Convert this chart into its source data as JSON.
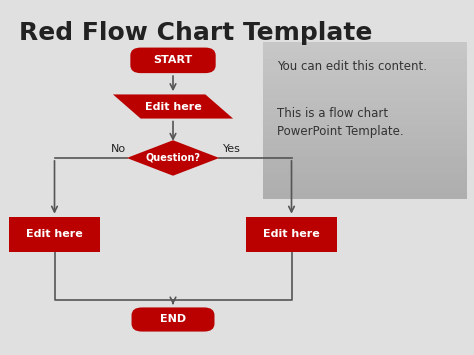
{
  "title": "Red Flow Chart Template",
  "title_fontsize": 18,
  "title_color": "#222222",
  "bg_color": "#e0e0e0",
  "shape_color": "#bb0000",
  "shape_text_color": "#ffffff",
  "shape_text_fontsize": 8,
  "arrow_color": "#555555",
  "sidebar_bg_top": "#d0d4da",
  "sidebar_bg_bot": "#b8bcc4",
  "sidebar_text1": "You can edit this content.",
  "sidebar_text2": "This is a flow chart\nPowerPoint Template.",
  "sidebar_fontsize": 8.5,
  "sidebar_text_color": "#333333",
  "no_label": "No",
  "yes_label": "Yes",
  "question_label": "Question?",
  "start_label": "START",
  "end_label": "END",
  "edit_label": "Edit here"
}
